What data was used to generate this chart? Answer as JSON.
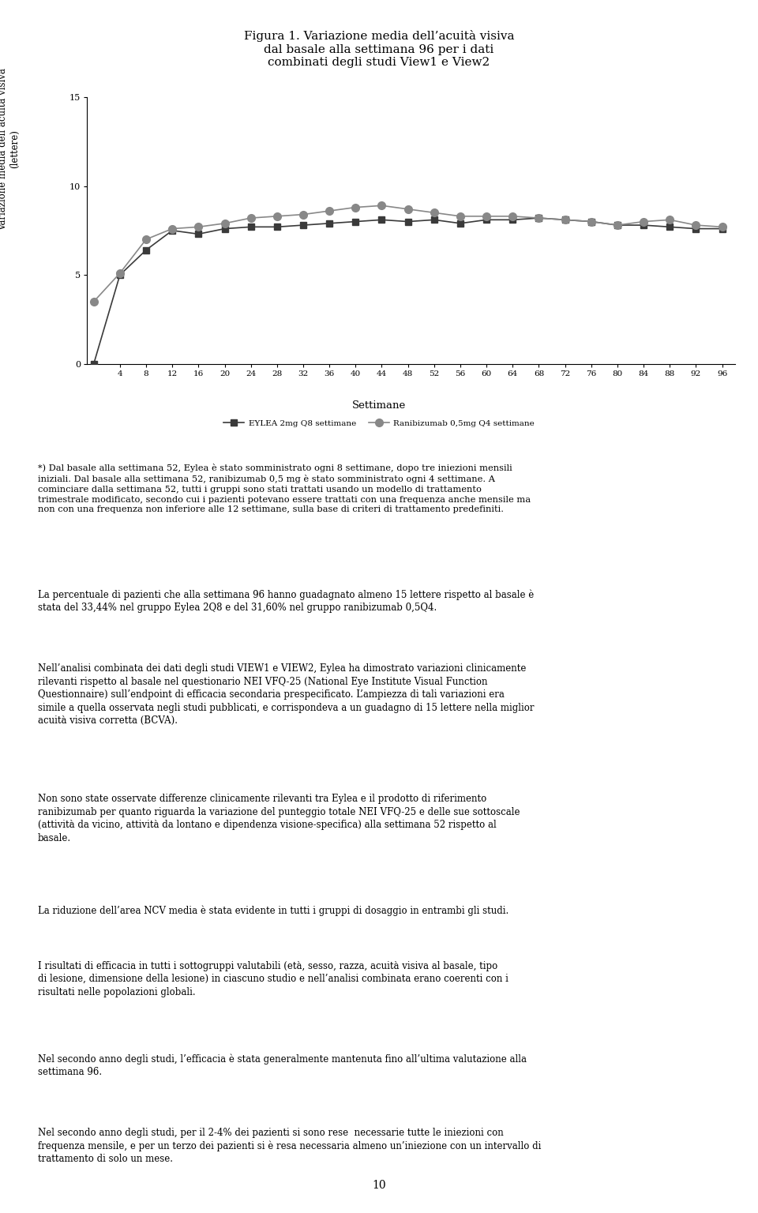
{
  "title": "Figura 1. Variazione media dell’acuità visiva\ndal basale alla settimana 96 per i dati\ncombinati degli studi View1 e View2",
  "ylabel": "Variazione media dell’acuità visiva\n(lettere)",
  "xlabel": "Settimane",
  "ylim": [
    0,
    15
  ],
  "yticks": [
    0,
    5,
    10,
    15
  ],
  "xticks": [
    4,
    8,
    12,
    16,
    20,
    24,
    28,
    32,
    36,
    40,
    44,
    48,
    52,
    56,
    60,
    64,
    68,
    72,
    76,
    80,
    84,
    88,
    92,
    96
  ],
  "eylea_x": [
    0,
    4,
    8,
    12,
    16,
    20,
    24,
    28,
    32,
    36,
    40,
    44,
    48,
    52,
    56,
    60,
    64,
    68,
    72,
    76,
    80,
    84,
    88,
    92,
    96
  ],
  "eylea_y": [
    0,
    5.0,
    6.4,
    7.5,
    7.3,
    7.6,
    7.7,
    7.7,
    7.8,
    7.9,
    8.0,
    8.1,
    8.0,
    8.1,
    7.9,
    8.1,
    8.1,
    8.2,
    8.1,
    8.0,
    7.8,
    7.8,
    7.7,
    7.6,
    7.6
  ],
  "rani_x": [
    0,
    4,
    8,
    12,
    16,
    20,
    24,
    28,
    32,
    36,
    40,
    44,
    48,
    52,
    56,
    60,
    64,
    68,
    72,
    76,
    80,
    84,
    88,
    92,
    96
  ],
  "rani_y": [
    3.5,
    5.1,
    7.0,
    7.6,
    7.7,
    7.9,
    8.2,
    8.3,
    8.4,
    8.6,
    8.8,
    8.9,
    8.7,
    8.5,
    8.3,
    8.3,
    8.3,
    8.2,
    8.1,
    8.0,
    7.8,
    8.0,
    8.1,
    7.8,
    7.7
  ],
  "eylea_color": "#3a3a3a",
  "rani_color": "#888888",
  "eylea_label": "EYLEA 2mg Q8 settimane",
  "rani_label": "Ranibizumab 0,5mg Q4 settimane",
  "footnote": "*) Dal basale alla settimana 52, Eylea è stato somministrato ogni 8 settimane, dopo tre iniezioni mensili iniziali. Dal basale alla settimana 52, ranibizumab 0,5 mg è stato somministrato ogni 4 settimane. A cominciare dalla settimana 52, tutti i gruppi sono stati trattati usando un modello di trattamento trimestrale modificato, secondo cui i pazienti potevano essere trattati con una frequenza anche mensile ma non con una frequenza non inferiore alle 12 settimane, sulla base di criteri di trattamento predefiniti.",
  "paragraph1": "La percentuale di pazienti che alla settimana 96 hanno guadagnato almeno 15 lettere rispetto al basale è stata del 33,44% nel gruppo Eylea 2Q8 e del 31,60% nel gruppo ranibizumab 0,5Q4.",
  "paragraph2": "Nell’analisi combinata dei dati degli studi VIEW1 e VIEW2, Eylea ha dimostrato variazioni clinicamente rilevanti rispetto al basale nel questionario NEI VFQ-25 (National Eye Institute Visual Function Questionnaire) sull’endpoint di efficacia secondaria prespecificato. L’ampiezza di tali variazioni era simile a quella osservata negli studi pubblicati, e corrispondeva a un guadagno di 15 lettere nella miglior acuità visiva corretta (BCVA).",
  "paragraph3": "Non sono state osservate differenze clinicamente rilevanti tra Eylea e il prodotto di riferimento ranibizumab per quanto riguarda la variazione del punteggio totale NEI VFQ-25 e delle sue sottoscale (attività da vicino, attività da lontano e dipendenza visione-specifica) alla settimana 52 rispetto al basale.",
  "paragraph4": "La riduzione dell’area NCV media è stata evidente in tutti i gruppi di dosaggio in entrambi gli studi.",
  "paragraph5": "I risultati di efficacia in tutti i sottogruppi valutabili (età, sesso, razza, acuità visiva al basale, tipo di lesione, dimensione della lesione) in ciascuno studio e nell’analisi combinata erano coerenti con i risultati nelle popolazioni globali.",
  "paragraph6": "Nel secondo anno degli studi, l’efficacia è stata generalmente mantenuta fino all’ultima valutazione alla settimana 96.",
  "paragraph7": "Nel secondo anno degli studi, per il 2-4% dei pazienti si sono rese  necessarie tutte le iniezioni con frequenza mensile, e per un terzo dei pazienti si è resa necessaria almeno un’iniezione con un intervallo di trattamento di solo un mese.",
  "page_number": "10",
  "bg_color": "#ffffff",
  "text_color": "#000000"
}
